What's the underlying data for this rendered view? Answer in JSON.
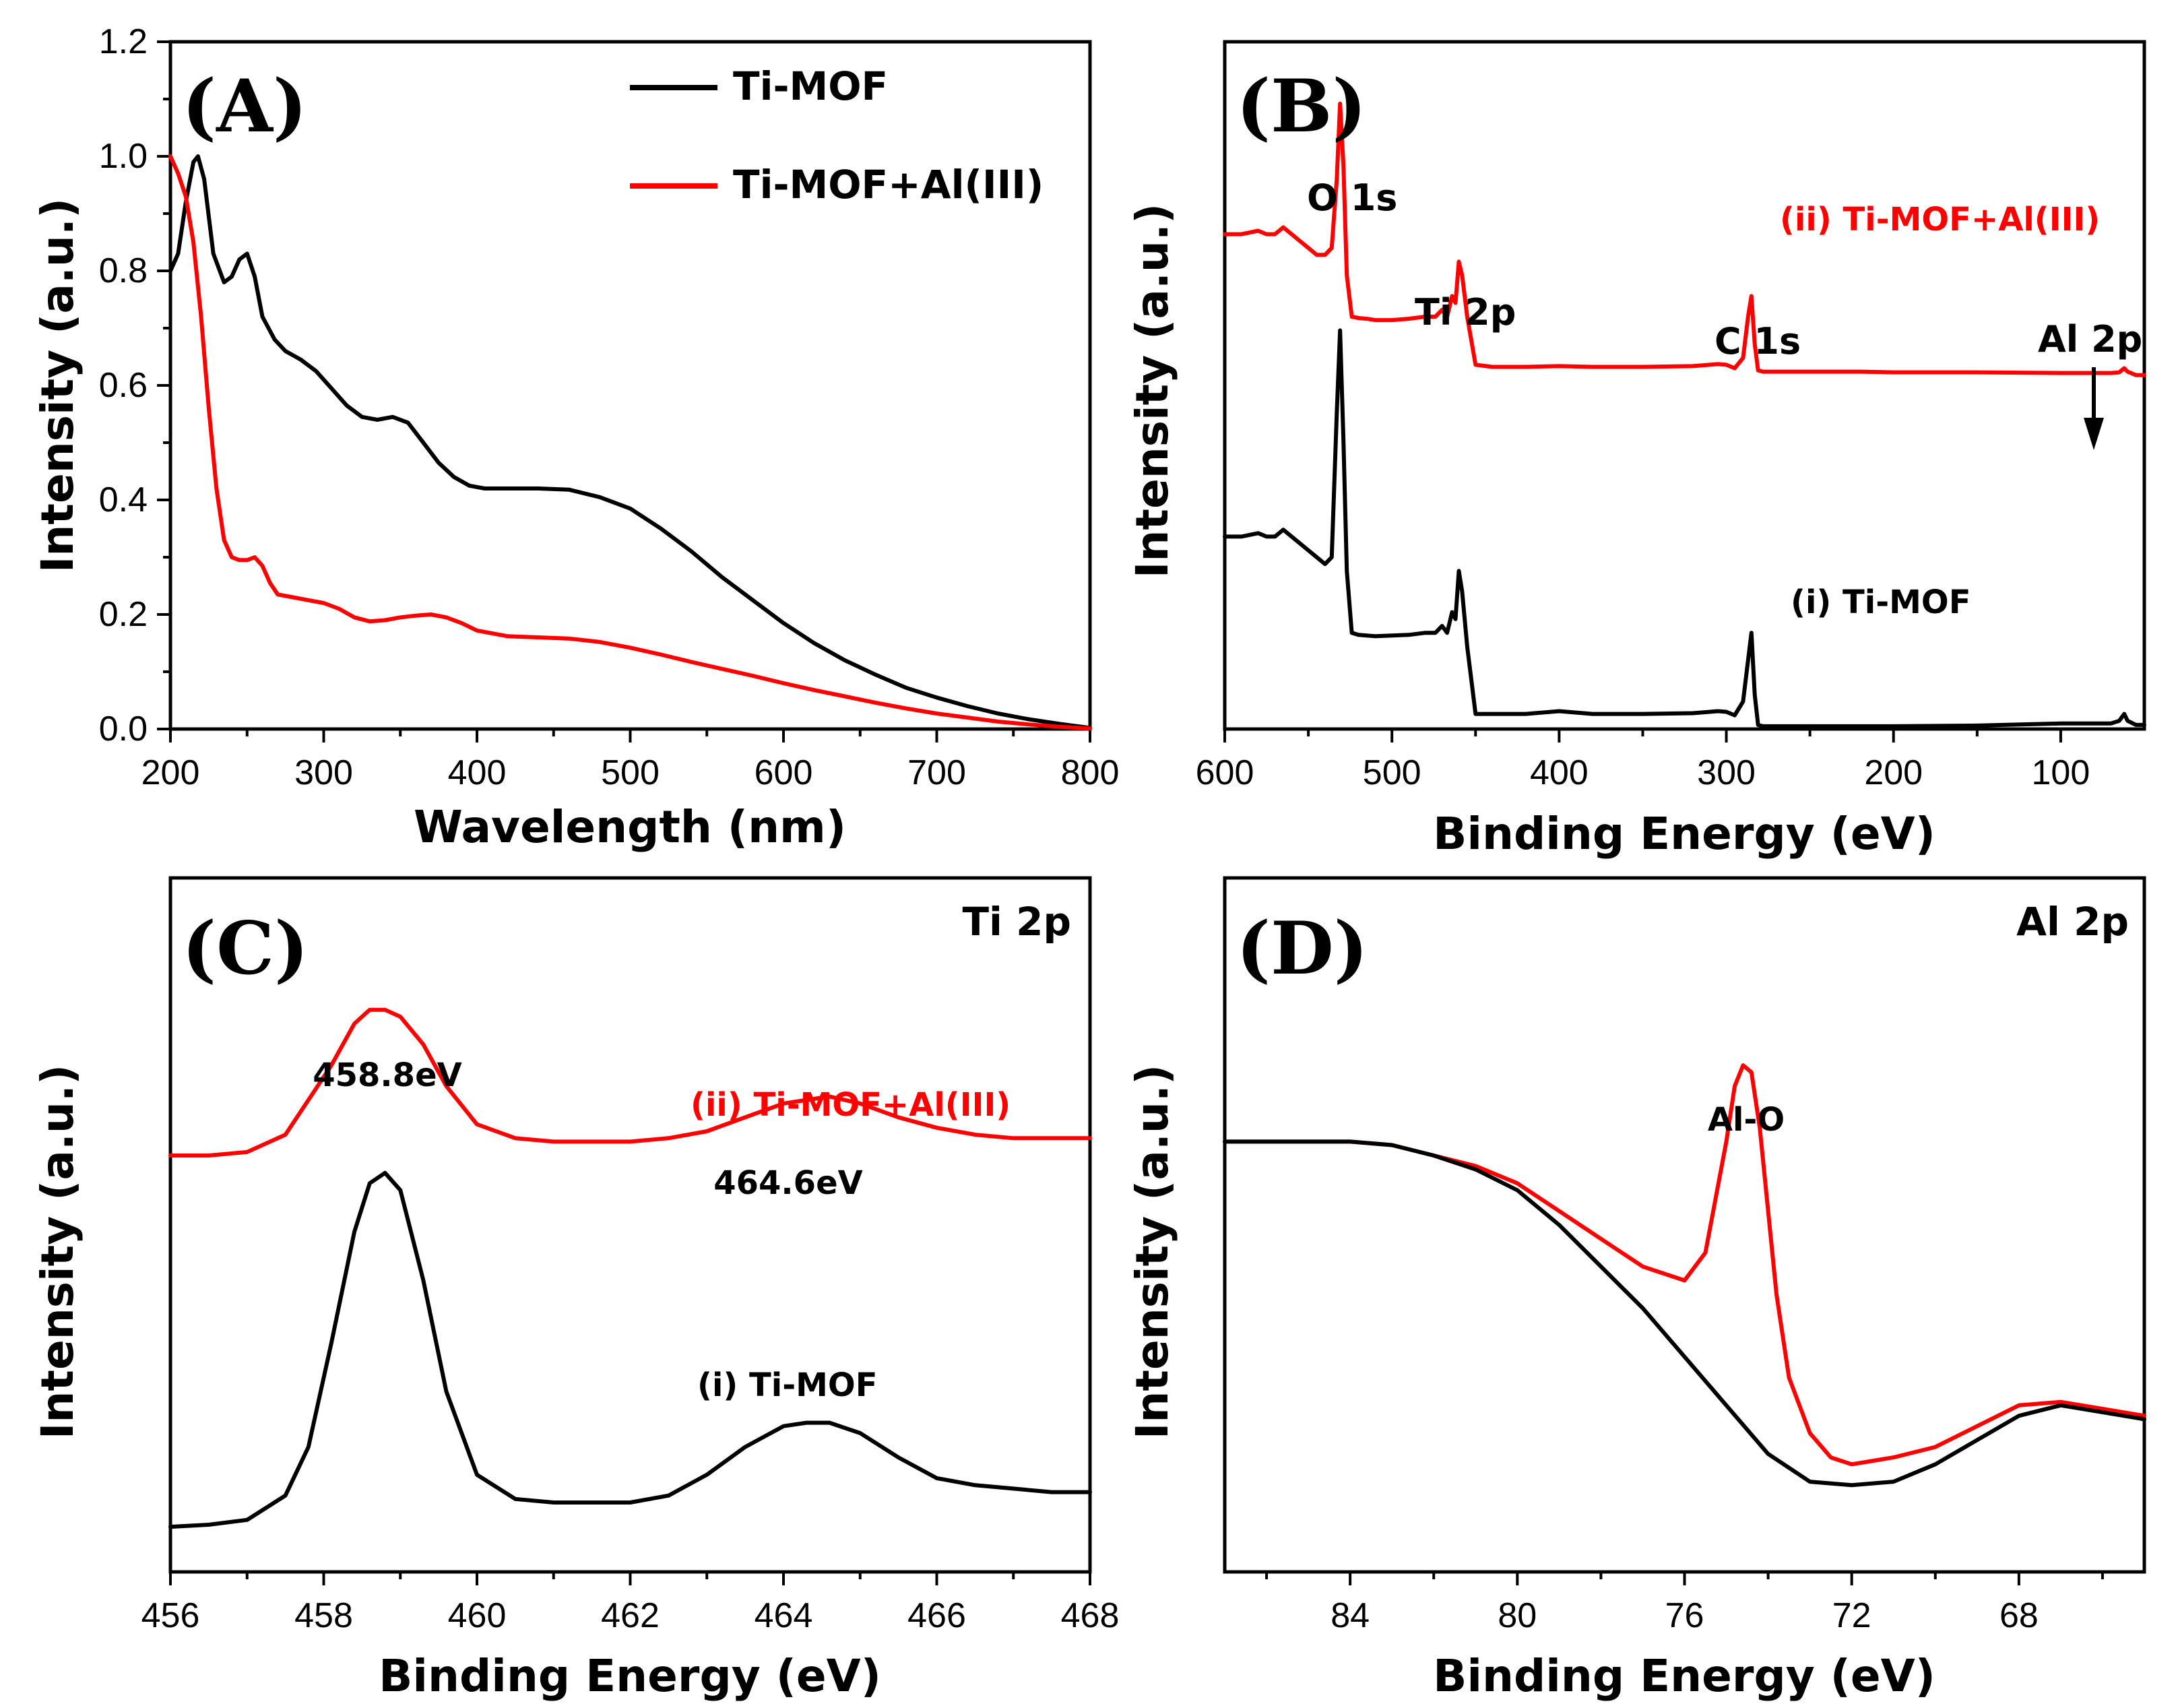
{
  "colors": {
    "ti_mof": "#000000",
    "ti_mof_al": "#ff0000",
    "annotation_black": "#000000",
    "annotation_red": "#ff0000"
  },
  "chart_data": [
    {
      "panel": "(A)",
      "type": "line",
      "xlabel": "Wavelength (nm)",
      "ylabel": "Intensity (a.u.)",
      "xlim": [
        200,
        800
      ],
      "ylim": [
        0.0,
        1.2
      ],
      "x_ticks": [
        "200",
        "300",
        "400",
        "500",
        "600",
        "700",
        "800"
      ],
      "y_ticks": [
        "0.0",
        "0.2",
        "0.4",
        "0.6",
        "0.8",
        "1.0",
        "1.2"
      ],
      "legend": [
        "Ti-MOF",
        "Ti-MOF+Al(III)"
      ],
      "legend_position": "top-right",
      "series": [
        {
          "name": "Ti-MOF",
          "color": "black",
          "x": [
            200,
            205,
            210,
            215,
            218,
            222,
            228,
            235,
            240,
            245,
            250,
            255,
            260,
            268,
            275,
            285,
            295,
            305,
            315,
            325,
            335,
            345,
            355,
            365,
            375,
            385,
            395,
            405,
            420,
            440,
            460,
            480,
            500,
            520,
            540,
            560,
            580,
            600,
            620,
            640,
            660,
            680,
            700,
            720,
            740,
            760,
            780,
            800
          ],
          "y": [
            0.8,
            0.83,
            0.92,
            0.99,
            1.0,
            0.96,
            0.83,
            0.78,
            0.79,
            0.82,
            0.83,
            0.79,
            0.72,
            0.68,
            0.66,
            0.645,
            0.625,
            0.595,
            0.565,
            0.545,
            0.54,
            0.545,
            0.535,
            0.5,
            0.465,
            0.44,
            0.425,
            0.42,
            0.42,
            0.42,
            0.418,
            0.405,
            0.385,
            0.35,
            0.31,
            0.265,
            0.225,
            0.185,
            0.15,
            0.12,
            0.095,
            0.072,
            0.055,
            0.04,
            0.027,
            0.017,
            0.009,
            0.002
          ]
        },
        {
          "name": "Ti-MOF+Al(III)",
          "color": "red",
          "x": [
            200,
            205,
            210,
            215,
            220,
            225,
            230,
            235,
            240,
            245,
            250,
            255,
            260,
            265,
            270,
            280,
            290,
            300,
            310,
            320,
            330,
            340,
            350,
            360,
            370,
            380,
            390,
            400,
            420,
            440,
            460,
            480,
            500,
            520,
            540,
            560,
            580,
            600,
            620,
            640,
            660,
            680,
            700,
            720,
            740,
            760,
            780,
            800
          ],
          "y": [
            1.0,
            0.97,
            0.93,
            0.85,
            0.72,
            0.56,
            0.42,
            0.33,
            0.3,
            0.295,
            0.295,
            0.3,
            0.285,
            0.255,
            0.235,
            0.23,
            0.225,
            0.22,
            0.21,
            0.195,
            0.188,
            0.19,
            0.195,
            0.198,
            0.2,
            0.195,
            0.185,
            0.172,
            0.162,
            0.16,
            0.158,
            0.152,
            0.142,
            0.13,
            0.117,
            0.105,
            0.093,
            0.08,
            0.068,
            0.057,
            0.046,
            0.036,
            0.027,
            0.02,
            0.013,
            0.008,
            0.004,
            0.001
          ]
        }
      ]
    },
    {
      "panel": "(B)",
      "type": "line",
      "xlabel": "Binding Energy (eV)",
      "ylabel": "Intensity (a.u.)",
      "xlim": [
        600,
        50
      ],
      "ylim": [
        0,
        1
      ],
      "x_ticks": [
        "600",
        "500",
        "400",
        "300",
        "200",
        "100"
      ],
      "annotations": [
        "O 1s",
        "Ti 2p",
        "C 1s",
        "Al 2p"
      ],
      "series": [
        {
          "name": "(ii) Ti-MOF+Al(III)",
          "color": "red",
          "x": [
            600,
            590,
            580,
            575,
            570,
            565,
            560,
            555,
            550,
            545,
            540,
            536,
            533,
            531,
            529,
            527,
            524,
            520,
            515,
            510,
            500,
            490,
            480,
            474,
            470,
            467,
            464,
            462,
            460,
            458,
            455,
            450,
            440,
            420,
            400,
            380,
            350,
            320,
            305,
            300,
            295,
            290,
            287,
            285,
            283,
            281,
            278,
            270,
            250,
            220,
            200,
            150,
            100,
            80,
            70,
            65,
            62,
            60,
            55,
            50
          ],
          "y": [
            0.72,
            0.72,
            0.725,
            0.72,
            0.72,
            0.73,
            0.72,
            0.71,
            0.7,
            0.69,
            0.69,
            0.7,
            0.8,
            0.91,
            0.82,
            0.66,
            0.6,
            0.598,
            0.597,
            0.595,
            0.595,
            0.597,
            0.6,
            0.6,
            0.61,
            0.6,
            0.63,
            0.62,
            0.68,
            0.66,
            0.6,
            0.53,
            0.527,
            0.527,
            0.528,
            0.527,
            0.527,
            0.528,
            0.531,
            0.53,
            0.525,
            0.54,
            0.6,
            0.63,
            0.56,
            0.522,
            0.52,
            0.52,
            0.52,
            0.52,
            0.519,
            0.519,
            0.518,
            0.518,
            0.518,
            0.519,
            0.525,
            0.52,
            0.515,
            0.515
          ]
        },
        {
          "name": "(i) Ti-MOF",
          "color": "black",
          "x": [
            600,
            590,
            580,
            575,
            570,
            565,
            560,
            555,
            550,
            545,
            540,
            536,
            533,
            531,
            529,
            527,
            524,
            520,
            515,
            510,
            500,
            490,
            480,
            474,
            470,
            467,
            464,
            462,
            460,
            458,
            455,
            450,
            440,
            420,
            400,
            380,
            350,
            320,
            305,
            300,
            295,
            290,
            287,
            285,
            283,
            281,
            278,
            270,
            250,
            220,
            200,
            150,
            100,
            80,
            70,
            65,
            62,
            60,
            55,
            50
          ],
          "y": [
            0.28,
            0.28,
            0.285,
            0.28,
            0.28,
            0.29,
            0.28,
            0.27,
            0.26,
            0.25,
            0.24,
            0.25,
            0.46,
            0.58,
            0.42,
            0.23,
            0.14,
            0.137,
            0.136,
            0.135,
            0.136,
            0.137,
            0.14,
            0.14,
            0.15,
            0.14,
            0.17,
            0.16,
            0.23,
            0.2,
            0.12,
            0.022,
            0.022,
            0.022,
            0.026,
            0.022,
            0.022,
            0.023,
            0.026,
            0.025,
            0.02,
            0.04,
            0.1,
            0.14,
            0.05,
            0.006,
            0.004,
            0.004,
            0.004,
            0.004,
            0.004,
            0.005,
            0.008,
            0.008,
            0.008,
            0.012,
            0.022,
            0.012,
            0.006,
            0.006
          ]
        }
      ]
    },
    {
      "panel": "(C)",
      "type": "line",
      "title": "Ti 2p",
      "xlabel": "Binding Energy (eV)",
      "ylabel": "Intensity (a.u.)",
      "xlim": [
        456,
        468
      ],
      "ylim": [
        0,
        1
      ],
      "x_ticks": [
        "456",
        "458",
        "460",
        "462",
        "464",
        "466",
        "468"
      ],
      "annotations": [
        "458.8eV",
        "464.6eV"
      ],
      "series": [
        {
          "name": "(ii) Ti-MOF+Al(III)",
          "color": "red",
          "x": [
            456.0,
            456.5,
            457.0,
            457.5,
            457.8,
            458.1,
            458.4,
            458.6,
            458.8,
            459.0,
            459.3,
            459.6,
            460.0,
            460.5,
            461.0,
            461.5,
            462.0,
            462.5,
            463.0,
            463.5,
            464.0,
            464.3,
            464.6,
            465.0,
            465.5,
            466.0,
            466.5,
            467.0,
            467.5,
            468.0
          ],
          "y": [
            0.6,
            0.6,
            0.605,
            0.63,
            0.68,
            0.73,
            0.79,
            0.81,
            0.81,
            0.8,
            0.76,
            0.7,
            0.645,
            0.625,
            0.62,
            0.62,
            0.62,
            0.625,
            0.635,
            0.655,
            0.675,
            0.68,
            0.685,
            0.675,
            0.655,
            0.64,
            0.63,
            0.625,
            0.625,
            0.625
          ]
        },
        {
          "name": "(i) Ti-MOF",
          "color": "black",
          "x": [
            456.0,
            456.5,
            457.0,
            457.5,
            457.8,
            458.1,
            458.4,
            458.6,
            458.8,
            459.0,
            459.3,
            459.6,
            460.0,
            460.5,
            461.0,
            461.5,
            462.0,
            462.5,
            463.0,
            463.5,
            464.0,
            464.3,
            464.6,
            465.0,
            465.5,
            466.0,
            466.5,
            467.0,
            467.5,
            468.0
          ],
          "y": [
            0.065,
            0.068,
            0.075,
            0.11,
            0.18,
            0.33,
            0.49,
            0.56,
            0.575,
            0.55,
            0.42,
            0.26,
            0.14,
            0.105,
            0.1,
            0.1,
            0.1,
            0.11,
            0.14,
            0.18,
            0.21,
            0.215,
            0.215,
            0.2,
            0.165,
            0.135,
            0.125,
            0.12,
            0.115,
            0.115
          ]
        }
      ]
    },
    {
      "panel": "(D)",
      "type": "line",
      "title": "Al 2p",
      "xlabel": "Binding Energy (eV)",
      "ylabel": "Intensity (a.u.)",
      "xlim": [
        87,
        65
      ],
      "ylim": [
        0,
        1
      ],
      "x_ticks": [
        "84",
        "80",
        "76",
        "72",
        "68"
      ],
      "annotations": [
        "Al-O"
      ],
      "series": [
        {
          "name": "Ti-MOF+Al(III)",
          "color": "red",
          "x": [
            87,
            86,
            85,
            84,
            83,
            82,
            81,
            80,
            79,
            78,
            77,
            76.5,
            76,
            75.5,
            75,
            74.8,
            74.6,
            74.4,
            74.2,
            74.0,
            73.8,
            73.5,
            73.0,
            72.5,
            72,
            71,
            70,
            69,
            68,
            67,
            66,
            65
          ],
          "y": [
            0.62,
            0.62,
            0.62,
            0.62,
            0.615,
            0.6,
            0.585,
            0.56,
            0.52,
            0.48,
            0.44,
            0.43,
            0.42,
            0.46,
            0.62,
            0.7,
            0.73,
            0.72,
            0.64,
            0.52,
            0.4,
            0.28,
            0.2,
            0.165,
            0.155,
            0.165,
            0.18,
            0.21,
            0.24,
            0.245,
            0.235,
            0.225
          ]
        },
        {
          "name": "Ti-MOF",
          "color": "black",
          "x": [
            87,
            86,
            85,
            84,
            83,
            82,
            81,
            80,
            79,
            78,
            77,
            76,
            75,
            74,
            73,
            72,
            71,
            70,
            69,
            68,
            67,
            66,
            65
          ],
          "y": [
            0.62,
            0.62,
            0.62,
            0.62,
            0.615,
            0.6,
            0.58,
            0.55,
            0.5,
            0.44,
            0.38,
            0.31,
            0.24,
            0.17,
            0.13,
            0.125,
            0.13,
            0.155,
            0.19,
            0.225,
            0.24,
            0.23,
            0.22
          ]
        }
      ]
    }
  ],
  "labels": {
    "panel_a": "(A)",
    "panel_b": "(B)",
    "panel_c": "(C)",
    "panel_d": "(D)",
    "legend_ti_mof": "Ti-MOF",
    "legend_ti_mof_al": "Ti-MOF+Al(III)",
    "b_o1s": "O 1s",
    "b_ti2p": "Ti 2p",
    "b_c1s": "C 1s",
    "b_al2p": "Al 2p",
    "b_series_ii": "(ii) Ti-MOF+Al(III)",
    "b_series_i": "(i) Ti-MOF",
    "c_title": "Ti 2p",
    "c_peak1": "458.8eV",
    "c_peak2": "464.6eV",
    "c_series_ii": "(ii) Ti-MOF+Al(III)",
    "c_series_i": "(i) Ti-MOF",
    "d_title": "Al 2p",
    "d_peak": "Al-O",
    "ylabel": "Intensity (a.u.)",
    "a_xlabel": "Wavelength (nm)",
    "b_xlabel": "Binding Energy (eV)",
    "c_xlabel": "Binding Energy (eV)",
    "d_xlabel": "Binding Energy (eV)"
  }
}
